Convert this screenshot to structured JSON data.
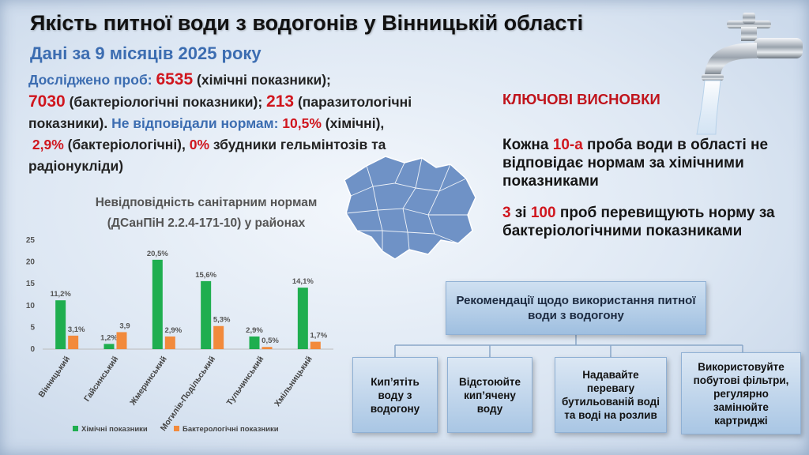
{
  "title": "Якість питної води з водогонів у Вінницькій області",
  "subtitle": "Дані за 9 місяців 2025 року",
  "stats": {
    "p1_label": "Досліджено проб: ",
    "p1_val": "6535",
    "p1_text": " (хімічні показники);",
    "p2_val": "7030",
    "p2_text": " (бактеріологічні показники); ",
    "p3_val": "213",
    "p3_text": " (паразитологічні показники). ",
    "p4_label": "Не відповідали нормам: ",
    "p4_val": "10,5%",
    "p4_text": " (хімічні),",
    "p5_val": "2,9%",
    "p5_text": " (бактеріологічні), ",
    "p6_val": "0%",
    "p6_text": " збудники гельмінтозів та радіонукліди)"
  },
  "chart_title_1": "Невідповідність санітарним нормам",
  "chart_title_2": "(ДСанПіН 2.2.4-171-10) у районах",
  "chart_data": {
    "type": "bar",
    "categories": [
      "Вінницький",
      "Гайсинський",
      "Жмеринський",
      "Могилів-Подільський",
      "Тульчинський",
      "Хмільницький"
    ],
    "series": [
      {
        "name": "Хімічні показники",
        "color": "#1fae4f",
        "values": [
          11.2,
          1.2,
          20.5,
          15.6,
          2.9,
          14.1
        ],
        "labels": [
          "11,2%",
          "1,2%",
          "20,5%",
          "15,6%",
          "2,9%",
          "14,1%"
        ]
      },
      {
        "name": "Бактерологічні показники",
        "color": "#f28a3c",
        "values": [
          3.1,
          3.9,
          2.9,
          5.3,
          0.5,
          1.7
        ],
        "labels": [
          "3,1%",
          "3,9",
          "2,9%",
          "5,3%",
          "0,5%",
          "1,7%"
        ]
      }
    ],
    "yticks": [
      "0",
      "5",
      "10",
      "15",
      "20",
      "25"
    ],
    "ylim": [
      0,
      25
    ]
  },
  "conclusions": {
    "heading": "КЛЮЧОВІ ВИСНОВКИ",
    "c1_a": "Кожна ",
    "c1_b": "10-а",
    "c1_c": " проба води в області не відповідає  нормам за хімічними показниками",
    "c2_a": "3",
    "c2_b": " зі ",
    "c2_c": "100",
    "c2_d": " проб перевищують норму за бактеріологічними показниками"
  },
  "recommendations": {
    "title": "Рекомендації щодо використання питної води з водогону",
    "items": [
      "Кип’ятіть воду з водогону",
      "Відстоюйте кип’ячену воду",
      "Надавайте перевагу бутильованій воді та воді на розлив",
      "Використовуйте побутові фільтри, регулярно замінюйте картриджі"
    ]
  },
  "colors": {
    "accent_red": "#d0161e",
    "accent_blue": "#3c6db1"
  }
}
